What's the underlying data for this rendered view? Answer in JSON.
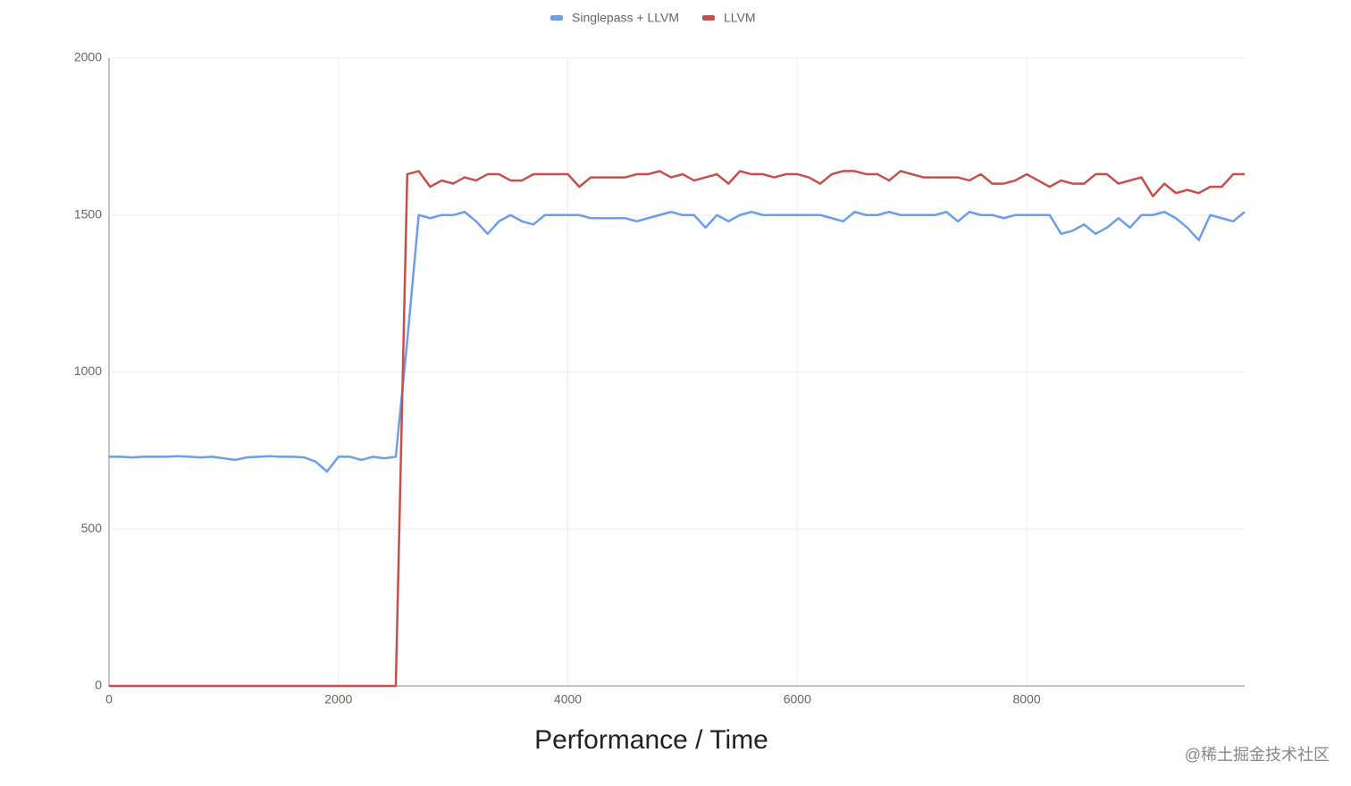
{
  "chart_data": {
    "type": "line",
    "title": "Performance / Time",
    "x": [
      0,
      100,
      200,
      300,
      400,
      500,
      600,
      700,
      800,
      900,
      1000,
      1100,
      1200,
      1300,
      1400,
      1500,
      1600,
      1700,
      1800,
      1900,
      2000,
      2100,
      2200,
      2300,
      2400,
      2500,
      2600,
      2700,
      2800,
      2900,
      3000,
      3100,
      3200,
      3300,
      3400,
      3500,
      3600,
      3700,
      3800,
      3900,
      4000,
      4100,
      4200,
      4300,
      4400,
      4500,
      4600,
      4700,
      4800,
      4900,
      5000,
      5100,
      5200,
      5300,
      5400,
      5500,
      5600,
      5700,
      5800,
      5900,
      6000,
      6100,
      6200,
      6300,
      6400,
      6500,
      6600,
      6700,
      6800,
      6900,
      7000,
      7100,
      7200,
      7300,
      7400,
      7500,
      7600,
      7700,
      7800,
      7900,
      8000,
      8100,
      8200,
      8300,
      8400,
      8500,
      8600,
      8700,
      8800,
      8900,
      9000,
      9100,
      9200,
      9300,
      9400,
      9500,
      9600,
      9700,
      9800,
      9900
    ],
    "series": [
      {
        "name": "Singlepass + LLVM",
        "color": "#6d9eeb",
        "values": [
          730,
          730,
          728,
          730,
          730,
          730,
          732,
          730,
          728,
          730,
          725,
          720,
          728,
          730,
          732,
          730,
          730,
          728,
          715,
          683,
          730,
          730,
          720,
          730,
          725,
          730,
          1100,
          1500,
          1490,
          1500,
          1500,
          1510,
          1480,
          1440,
          1480,
          1500,
          1480,
          1470,
          1500,
          1500,
          1500,
          1500,
          1490,
          1490,
          1490,
          1490,
          1480,
          1490,
          1500,
          1510,
          1500,
          1500,
          1460,
          1500,
          1480,
          1500,
          1510,
          1500,
          1500,
          1500,
          1500,
          1500,
          1500,
          1490,
          1480,
          1510,
          1500,
          1500,
          1510,
          1500,
          1500,
          1500,
          1500,
          1510,
          1480,
          1510,
          1500,
          1500,
          1490,
          1500,
          1500,
          1500,
          1500,
          1440,
          1450,
          1470,
          1440,
          1460,
          1490,
          1460,
          1500,
          1500,
          1510,
          1490,
          1460,
          1420,
          1500,
          1490,
          1480,
          1510
        ]
      },
      {
        "name": "LLVM",
        "color": "#c5504a",
        "values": [
          0,
          0,
          0,
          0,
          0,
          0,
          0,
          0,
          0,
          0,
          0,
          0,
          0,
          0,
          0,
          0,
          0,
          0,
          0,
          0,
          0,
          0,
          0,
          0,
          0,
          0,
          1630,
          1640,
          1590,
          1610,
          1600,
          1620,
          1610,
          1630,
          1630,
          1610,
          1610,
          1630,
          1630,
          1630,
          1630,
          1590,
          1620,
          1620,
          1620,
          1620,
          1630,
          1630,
          1640,
          1620,
          1630,
          1610,
          1620,
          1630,
          1600,
          1640,
          1630,
          1630,
          1620,
          1630,
          1630,
          1620,
          1600,
          1630,
          1640,
          1640,
          1630,
          1630,
          1610,
          1640,
          1630,
          1620,
          1620,
          1620,
          1620,
          1610,
          1630,
          1600,
          1600,
          1610,
          1630,
          1610,
          1590,
          1610,
          1600,
          1600,
          1630,
          1630,
          1600,
          1610,
          1620,
          1560,
          1600,
          1570,
          1580,
          1570,
          1590,
          1590,
          1630,
          1630
        ]
      }
    ],
    "xlim": [
      0,
      9900
    ],
    "ylim": [
      0,
      2000
    ],
    "xticks": [
      0,
      2000,
      4000,
      6000,
      8000
    ],
    "yticks": [
      0,
      500,
      1000,
      1500,
      2000
    ],
    "grid": true,
    "legend": "top",
    "watermark": "@稀土掘金技术社区"
  }
}
